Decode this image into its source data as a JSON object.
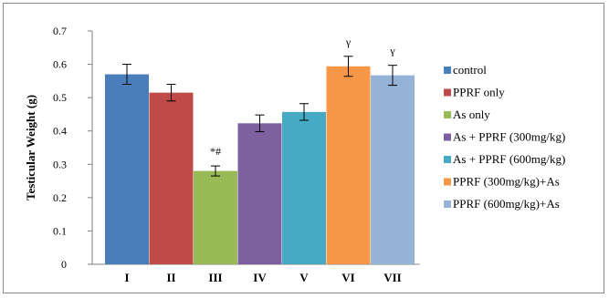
{
  "chart_data": {
    "type": "bar",
    "ylabel": "Testicular Weight (g)",
    "ylim": [
      0,
      0.7
    ],
    "yticks": [
      "0",
      "0.1",
      "0.2",
      "0.3",
      "0.4",
      "0.5",
      "0.6",
      "0.7"
    ],
    "categories": [
      "I",
      "II",
      "III",
      "IV",
      "V",
      "VI",
      "VII"
    ],
    "series": [
      {
        "name": "control",
        "value": 0.57,
        "error": 0.03,
        "color": "#4a7ebb",
        "annotation": ""
      },
      {
        "name": "PPRF only",
        "value": 0.515,
        "error": 0.025,
        "color": "#be4b48",
        "annotation": ""
      },
      {
        "name": "As only",
        "value": 0.28,
        "error": 0.015,
        "color": "#98b954",
        "annotation": "*#"
      },
      {
        "name": "As + PPRF (300mg/kg)",
        "value": 0.423,
        "error": 0.025,
        "color": "#7d60a0",
        "annotation": ""
      },
      {
        "name": "As + PPRF (600mg/kg)",
        "value": 0.457,
        "error": 0.025,
        "color": "#46aac5",
        "annotation": ""
      },
      {
        "name": "PPRF (300mg/kg)+As",
        "value": 0.594,
        "error": 0.03,
        "color": "#f79646",
        "annotation": "γ"
      },
      {
        "name": "PPRF (600mg/kg)+As",
        "value": 0.567,
        "error": 0.03,
        "color": "#95b3d7",
        "annotation": "γ"
      }
    ],
    "legend_position": "right",
    "grid": false
  }
}
